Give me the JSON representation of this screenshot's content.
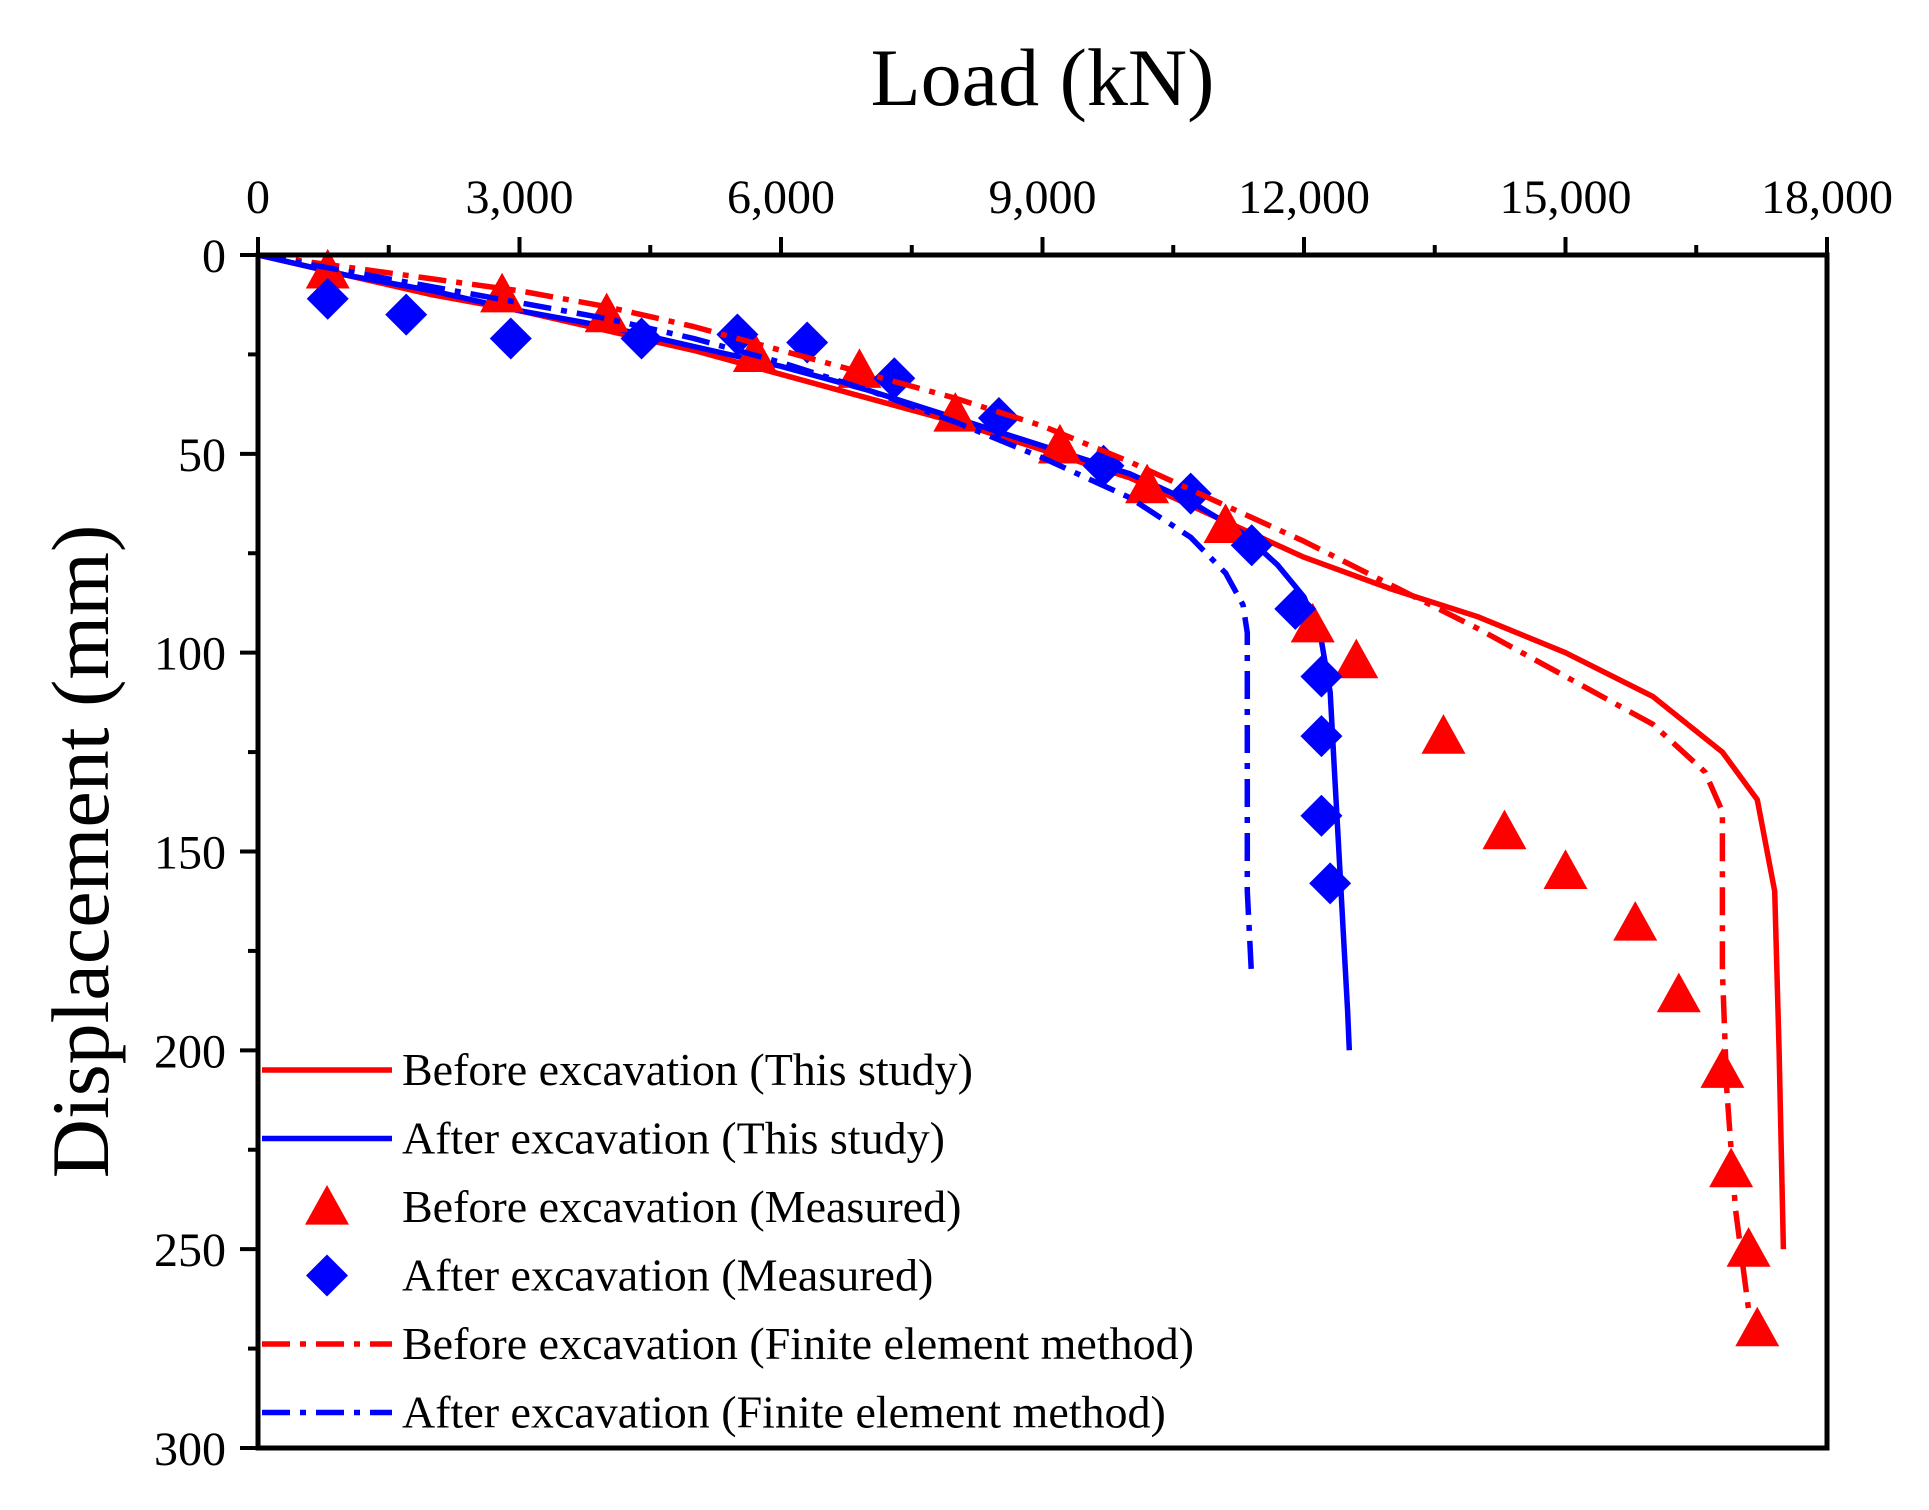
{
  "chart_data": {
    "type": "line",
    "title": "",
    "xlabel": "Load (kN)",
    "ylabel": "Displacement (mm)",
    "x_axis_position": "top",
    "y_axis_inverted": true,
    "xlim": [
      0,
      18000
    ],
    "ylim": [
      0,
      300
    ],
    "x_ticks": [
      0,
      3000,
      6000,
      9000,
      12000,
      15000,
      18000
    ],
    "x_tick_labels": [
      "0",
      "3,000",
      "6,000",
      "9,000",
      "12,000",
      "15,000",
      "18,000"
    ],
    "y_ticks": [
      0,
      50,
      100,
      150,
      200,
      250,
      300
    ],
    "y_tick_labels": [
      "0",
      "50",
      "100",
      "150",
      "200",
      "250",
      "300"
    ],
    "grid": false,
    "legend_position": "bottom-left",
    "series": [
      {
        "name": "Before excavation (This study)",
        "style": "solid-line",
        "color": "#ff0000",
        "points": [
          [
            0,
            0
          ],
          [
            1000,
            5
          ],
          [
            2000,
            10
          ],
          [
            3000,
            14
          ],
          [
            4000,
            19
          ],
          [
            5000,
            24
          ],
          [
            6000,
            30
          ],
          [
            7000,
            36
          ],
          [
            8000,
            42
          ],
          [
            9000,
            49
          ],
          [
            10000,
            56
          ],
          [
            11000,
            66
          ],
          [
            12000,
            76
          ],
          [
            13000,
            84
          ],
          [
            14000,
            91
          ],
          [
            15000,
            100
          ],
          [
            16000,
            111
          ],
          [
            16800,
            125
          ],
          [
            17200,
            137
          ],
          [
            17400,
            160
          ],
          [
            17450,
            200
          ],
          [
            17500,
            250
          ]
        ]
      },
      {
        "name": "After excavation (This study)",
        "style": "solid-line",
        "color": "#0000ff",
        "points": [
          [
            0,
            0
          ],
          [
            1000,
            5
          ],
          [
            2000,
            9
          ],
          [
            3000,
            14
          ],
          [
            4000,
            18
          ],
          [
            5000,
            23
          ],
          [
            6000,
            28
          ],
          [
            7000,
            34
          ],
          [
            8000,
            41
          ],
          [
            9000,
            48
          ],
          [
            10000,
            55
          ],
          [
            10700,
            62
          ],
          [
            11300,
            70
          ],
          [
            11700,
            78
          ],
          [
            12000,
            86
          ],
          [
            12200,
            97
          ],
          [
            12300,
            110
          ],
          [
            12350,
            130
          ],
          [
            12400,
            150
          ],
          [
            12450,
            170
          ],
          [
            12500,
            190
          ],
          [
            12520,
            200
          ]
        ]
      },
      {
        "name": "Before excavation (Measured)",
        "style": "triangle-marker",
        "color": "#ff0000",
        "points": [
          [
            800,
            4
          ],
          [
            2800,
            10
          ],
          [
            4000,
            15
          ],
          [
            5700,
            25
          ],
          [
            6900,
            29
          ],
          [
            8000,
            40
          ],
          [
            9200,
            48
          ],
          [
            10200,
            58
          ],
          [
            11100,
            68
          ],
          [
            12100,
            93
          ],
          [
            12600,
            102
          ],
          [
            13600,
            121
          ],
          [
            14300,
            145
          ],
          [
            15000,
            155
          ],
          [
            15800,
            168
          ],
          [
            16300,
            186
          ],
          [
            16800,
            205
          ],
          [
            16900,
            230
          ],
          [
            17100,
            250
          ],
          [
            17200,
            270
          ]
        ]
      },
      {
        "name": "After excavation (Measured)",
        "style": "diamond-marker",
        "color": "#0000ff",
        "points": [
          [
            800,
            11
          ],
          [
            1700,
            15
          ],
          [
            2900,
            21
          ],
          [
            4400,
            21
          ],
          [
            5500,
            20
          ],
          [
            6300,
            22
          ],
          [
            7300,
            31
          ],
          [
            8500,
            41
          ],
          [
            9700,
            53
          ],
          [
            10700,
            60
          ],
          [
            11400,
            73
          ],
          [
            11900,
            89
          ],
          [
            12200,
            106
          ],
          [
            12200,
            121
          ],
          [
            12200,
            141
          ],
          [
            12300,
            158
          ]
        ]
      },
      {
        "name": "Before excavation (Finite element method)",
        "style": "dash-dot-line",
        "color": "#ff0000",
        "points": [
          [
            0,
            0
          ],
          [
            1000,
            3
          ],
          [
            2000,
            6
          ],
          [
            3000,
            9
          ],
          [
            4000,
            13
          ],
          [
            5000,
            18
          ],
          [
            6000,
            24
          ],
          [
            7000,
            30
          ],
          [
            8000,
            36
          ],
          [
            9000,
            43
          ],
          [
            10000,
            52
          ],
          [
            11000,
            62
          ],
          [
            12000,
            72
          ],
          [
            13000,
            83
          ],
          [
            14000,
            94
          ],
          [
            15000,
            106
          ],
          [
            16000,
            118
          ],
          [
            16600,
            130
          ],
          [
            16800,
            140
          ],
          [
            16800,
            180
          ],
          [
            16850,
            210
          ],
          [
            16950,
            240
          ],
          [
            17100,
            265
          ]
        ]
      },
      {
        "name": "After excavation (Finite element method)",
        "style": "dash-dot-line",
        "color": "#0000ff",
        "points": [
          [
            0,
            0
          ],
          [
            1000,
            4
          ],
          [
            2000,
            8
          ],
          [
            3000,
            12
          ],
          [
            4000,
            16
          ],
          [
            5000,
            21
          ],
          [
            6000,
            27
          ],
          [
            7000,
            34
          ],
          [
            8000,
            42
          ],
          [
            9000,
            51
          ],
          [
            10000,
            61
          ],
          [
            10700,
            71
          ],
          [
            11100,
            80
          ],
          [
            11300,
            88
          ],
          [
            11350,
            95
          ],
          [
            11350,
            130
          ],
          [
            11350,
            160
          ],
          [
            11400,
            182
          ]
        ]
      }
    ]
  }
}
